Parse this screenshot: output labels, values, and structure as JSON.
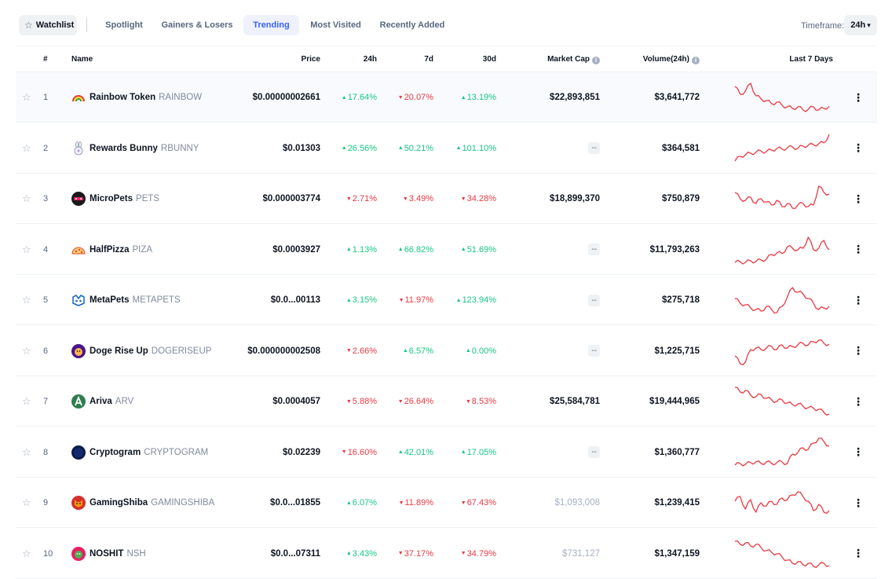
{
  "nav": {
    "watchlist_label": "Watchlist",
    "tabs": [
      {
        "label": "Spotlight",
        "active": false
      },
      {
        "label": "Gainers & Losers",
        "active": false
      },
      {
        "label": "Trending",
        "active": true
      },
      {
        "label": "Most Visited",
        "active": false
      },
      {
        "label": "Recently Added",
        "active": false
      }
    ],
    "timeframe_label": "Timeframe:",
    "timeframe_value": "24h"
  },
  "table": {
    "headers": {
      "rank": "#",
      "name": "Name",
      "price": "Price",
      "h24": "24h",
      "d7": "7d",
      "d30": "30d",
      "market_cap": "Market Cap",
      "volume": "Volume(24h)",
      "last7": "Last 7 Days"
    },
    "rows": [
      {
        "rank": "1",
        "name": "Rainbow Token",
        "symbol": "RAINBOW",
        "price": "$0.00000002661",
        "h24": "17.64%",
        "h24_dir": "up",
        "d7": "20.07%",
        "d7_dir": "down",
        "d30": "13.19%",
        "d30_dir": "up",
        "market_cap": "$22,893,851",
        "mcap_style": "normal",
        "volume": "$3,641,772",
        "icon": "rainbow-icon",
        "spark": [
          0.85,
          0.6,
          0.7,
          0.95,
          0.55,
          0.45,
          0.4,
          0.3,
          0.35,
          0.25,
          0.2,
          0.15,
          0.2,
          0.1,
          0.12,
          0.2,
          0.1,
          0.15,
          0.22
        ]
      },
      {
        "rank": "2",
        "name": "Rewards Bunny",
        "symbol": "RBUNNY",
        "price": "$0.01303",
        "h24": "26.56%",
        "h24_dir": "up",
        "d7": "50.21%",
        "d7_dir": "up",
        "d30": "101.10%",
        "d30_dir": "up",
        "market_cap": "--",
        "mcap_style": "dash",
        "volume": "$364,581",
        "icon": "bunny-icon",
        "spark": [
          0.1,
          0.25,
          0.3,
          0.35,
          0.38,
          0.42,
          0.4,
          0.45,
          0.5,
          0.48,
          0.52,
          0.55,
          0.5,
          0.58,
          0.6,
          0.62,
          0.65,
          0.68,
          0.95
        ]
      },
      {
        "rank": "3",
        "name": "MicroPets",
        "symbol": "PETS",
        "price": "$0.000003774",
        "h24": "2.71%",
        "h24_dir": "down",
        "d7": "3.49%",
        "d7_dir": "down",
        "d30": "34.28%",
        "d30_dir": "down",
        "market_cap": "$18,899,370",
        "mcap_style": "normal",
        "volume": "$750,879",
        "icon": "micropets-icon",
        "spark": [
          0.7,
          0.5,
          0.45,
          0.55,
          0.35,
          0.5,
          0.4,
          0.3,
          0.45,
          0.25,
          0.35,
          0.2,
          0.3,
          0.35,
          0.25,
          0.3,
          0.9,
          0.7,
          0.65
        ]
      },
      {
        "rank": "4",
        "name": "HalfPizza",
        "symbol": "PIZA",
        "price": "$0.0003927",
        "h24": "1.13%",
        "h24_dir": "up",
        "d7": "66.82%",
        "d7_dir": "up",
        "d30": "51.69%",
        "d30_dir": "up",
        "market_cap": "--",
        "mcap_style": "dash",
        "volume": "$11,793,263",
        "icon": "pizza-icon",
        "spark": [
          0.1,
          0.12,
          0.1,
          0.15,
          0.13,
          0.18,
          0.2,
          0.35,
          0.4,
          0.38,
          0.6,
          0.55,
          0.5,
          0.55,
          0.9,
          0.5,
          0.55,
          0.8,
          0.5
        ]
      },
      {
        "rank": "5",
        "name": "MetaPets",
        "symbol": "METAPETS",
        "price": "$0.0...00113",
        "h24": "3.15%",
        "h24_dir": "up",
        "d7": "11.97%",
        "d7_dir": "down",
        "d30": "123.94%",
        "d30_dir": "up",
        "market_cap": "--",
        "mcap_style": "dash",
        "volume": "$275,718",
        "icon": "metapets-icon",
        "spark": [
          0.55,
          0.4,
          0.35,
          0.25,
          0.2,
          0.15,
          0.3,
          0.2,
          0.1,
          0.3,
          0.6,
          0.9,
          0.75,
          0.7,
          0.55,
          0.4,
          0.2,
          0.25,
          0.3
        ]
      },
      {
        "rank": "6",
        "name": "Doge Rise Up",
        "symbol": "DOGERISEUP",
        "price": "$0.000000002508",
        "h24": "2.66%",
        "h24_dir": "down",
        "d7": "6.57%",
        "d7_dir": "up",
        "d30": "0.00%",
        "d30_dir": "up",
        "market_cap": "--",
        "mcap_style": "dash",
        "volume": "$1,225,715",
        "icon": "doge-icon",
        "spark": [
          0.35,
          0.1,
          0.15,
          0.55,
          0.6,
          0.55,
          0.6,
          0.65,
          0.55,
          0.7,
          0.6,
          0.65,
          0.7,
          0.75,
          0.7,
          0.8,
          0.85,
          0.75,
          0.72
        ]
      },
      {
        "rank": "7",
        "name": "Ariva",
        "symbol": "ARV",
        "price": "$0.0004057",
        "h24": "5.88%",
        "h24_dir": "down",
        "d7": "26.64%",
        "d7_dir": "down",
        "d30": "8.53%",
        "d30_dir": "down",
        "market_cap": "$25,584,781",
        "mcap_style": "normal",
        "volume": "$19,444,965",
        "icon": "ariva-icon",
        "spark": [
          0.95,
          0.8,
          0.85,
          0.7,
          0.65,
          0.72,
          0.6,
          0.55,
          0.5,
          0.55,
          0.45,
          0.4,
          0.42,
          0.35,
          0.3,
          0.28,
          0.25,
          0.15,
          0.1
        ]
      },
      {
        "rank": "8",
        "name": "Cryptogram",
        "symbol": "CRYPTOGRAM",
        "price": "$0.02239",
        "h24": "16.60%",
        "h24_dir": "down",
        "d7": "42.01%",
        "d7_dir": "up",
        "d30": "17.05%",
        "d30_dir": "up",
        "market_cap": "--",
        "mcap_style": "dash",
        "volume": "$1,360,777",
        "icon": "cryptogram-icon",
        "spark": [
          0.1,
          0.15,
          0.12,
          0.18,
          0.2,
          0.15,
          0.2,
          0.15,
          0.18,
          0.2,
          0.15,
          0.45,
          0.5,
          0.65,
          0.6,
          0.8,
          0.95,
          0.85,
          0.7
        ]
      },
      {
        "rank": "9",
        "name": "GamingShiba",
        "symbol": "GAMINGSHIBA",
        "price": "$0.0...01855",
        "h24": "6.07%",
        "h24_dir": "up",
        "d7": "11.89%",
        "d7_dir": "down",
        "d30": "67.43%",
        "d30_dir": "down",
        "market_cap": "$1,093,008",
        "mcap_style": "muted",
        "volume": "$1,239,415",
        "icon": "shiba-icon",
        "spark": [
          0.55,
          0.7,
          0.3,
          0.6,
          0.2,
          0.5,
          0.4,
          0.55,
          0.45,
          0.65,
          0.6,
          0.75,
          0.85,
          0.7,
          0.55,
          0.25,
          0.45,
          0.2,
          0.25
        ]
      },
      {
        "rank": "10",
        "name": "NOSHIT",
        "symbol": "NSH",
        "price": "$0.0...07311",
        "h24": "3.43%",
        "h24_dir": "up",
        "d7": "37.17%",
        "d7_dir": "down",
        "d30": "34.79%",
        "d30_dir": "down",
        "market_cap": "$731,127",
        "mcap_style": "muted",
        "volume": "$1,347,159",
        "icon": "noshit-icon",
        "spark": [
          0.9,
          0.8,
          0.85,
          0.75,
          0.8,
          0.7,
          0.6,
          0.55,
          0.5,
          0.4,
          0.3,
          0.2,
          0.25,
          0.15,
          0.2,
          0.1,
          0.15,
          0.2,
          0.12
        ]
      }
    ]
  },
  "colors": {
    "accent": "#3861fb",
    "up": "#16c784",
    "down": "#ea3943",
    "spark": "#ea3943"
  }
}
